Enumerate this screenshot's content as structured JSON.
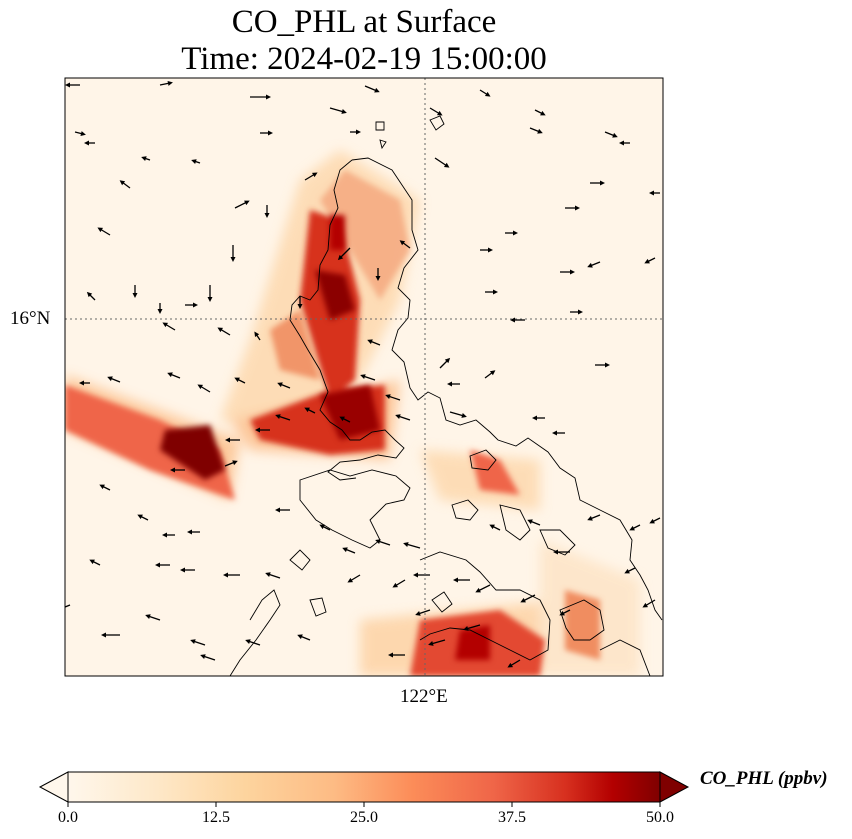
{
  "title_line1": "CO_PHL at Surface",
  "title_line2": "Time: 2024-02-19 15:00:00",
  "axes": {
    "lat_label": "16°N",
    "lon_label": "122°E"
  },
  "colorbar": {
    "label": "CO_PHL (ppbv)",
    "min": 0.0,
    "max": 50.0,
    "ticks": [
      "0.0",
      "12.5",
      "25.0",
      "37.5",
      "50.0"
    ],
    "colormap": "OrRd",
    "extend": "both"
  },
  "colors": {
    "low": "#fff7ec",
    "mid": "#fc8d59",
    "high": "#7f0000",
    "coast": "#000000"
  },
  "map_features": [
    "gridlines",
    "coastlines",
    "wind-vectors"
  ]
}
